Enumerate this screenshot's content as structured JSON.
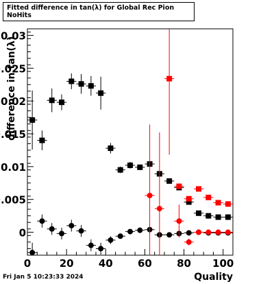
{
  "title": "Fitted difference in tan(λ) for Global Rec Pion NoHits",
  "timestamp": "Fri Jan  5 10:23:33 2024",
  "chart_data": {
    "type": "scatter",
    "title": "Fitted difference in tan(λ) for Global Rec Pion NoHits",
    "xlabel": "Quality",
    "ylabel": "difference in tan(λ)",
    "xlim": [
      0,
      105
    ],
    "ylim": [
      -0.0035,
      0.031
    ],
    "x_ticks": [
      0,
      20,
      40,
      60,
      80,
      100
    ],
    "y_ticks": [
      {
        "value": 0,
        "label": "0"
      },
      {
        "value": 0.005,
        "label": "0.005"
      },
      {
        "value": 0.01,
        "label": "0.01"
      },
      {
        "value": 0.015,
        "label": "0.015"
      },
      {
        "value": 0.02,
        "label": "0.02"
      },
      {
        "value": 0.025,
        "label": "0.025"
      },
      {
        "value": 0.03,
        "label": "0.03"
      }
    ],
    "grid": false,
    "series": [
      {
        "marker": "square",
        "color": "#000000",
        "points": [
          {
            "x": 2.5,
            "y": 0.0171,
            "err": 0.0045
          },
          {
            "x": 7.5,
            "y": 0.014,
            "err": 0.0015
          },
          {
            "x": 12.5,
            "y": 0.0201,
            "err": 0.0018
          },
          {
            "x": 17.5,
            "y": 0.0198,
            "err": 0.0012
          },
          {
            "x": 22.5,
            "y": 0.023,
            "err": 0.0012
          },
          {
            "x": 27.5,
            "y": 0.0226,
            "err": 0.0015
          },
          {
            "x": 32.5,
            "y": 0.0223,
            "err": 0.0015
          },
          {
            "x": 37.5,
            "y": 0.0212,
            "err": 0.0025
          },
          {
            "x": 42.5,
            "y": 0.0128,
            "err": 0.0008
          },
          {
            "x": 47.5,
            "y": 0.0095,
            "err": 0.0005
          },
          {
            "x": 52.5,
            "y": 0.0102,
            "err": 0.0005
          },
          {
            "x": 57.5,
            "y": 0.0099,
            "err": 0.0004
          },
          {
            "x": 62.5,
            "y": 0.0104,
            "err": 0.0005
          },
          {
            "x": 67.5,
            "y": 0.0089,
            "err": 0.0004
          },
          {
            "x": 72.5,
            "y": 0.0078,
            "err": 0.0003
          },
          {
            "x": 77.5,
            "y": 0.0068,
            "err": 0.0003
          },
          {
            "x": 82.5,
            "y": 0.0046,
            "err": 0.0003
          },
          {
            "x": 87.5,
            "y": 0.0029,
            "err": 0.0002
          },
          {
            "x": 92.5,
            "y": 0.0025,
            "err": 0.0002
          },
          {
            "x": 97.5,
            "y": 0.0023,
            "err": 0.0002
          },
          {
            "x": 102.5,
            "y": 0.0023,
            "err": 0.0002
          }
        ]
      },
      {
        "marker": "circle",
        "color": "#000000",
        "points": [
          {
            "x": 2.5,
            "y": -0.0031,
            "err": 0.0015
          },
          {
            "x": 7.5,
            "y": 0.0017,
            "err": 0.001
          },
          {
            "x": 12.5,
            "y": 0.0005,
            "err": 0.0009
          },
          {
            "x": 17.5,
            "y": -0.0002,
            "err": 0.0009
          },
          {
            "x": 22.5,
            "y": 0.001,
            "err": 0.0009
          },
          {
            "x": 27.5,
            "y": 0.0002,
            "err": 0.0009
          },
          {
            "x": 32.5,
            "y": -0.002,
            "err": 0.0009
          },
          {
            "x": 37.5,
            "y": -0.0025,
            "err": 0.0009
          },
          {
            "x": 42.5,
            "y": -0.0012,
            "err": 0.0006
          },
          {
            "x": 47.5,
            "y": -0.0006,
            "err": 0.0004
          },
          {
            "x": 52.5,
            "y": 0.0001,
            "err": 0.0003
          },
          {
            "x": 57.5,
            "y": 0.0003,
            "err": 0.0003
          },
          {
            "x": 62.5,
            "y": 0.0004,
            "err": 0.0003
          },
          {
            "x": 67.5,
            "y": -0.0004,
            "err": 0.0003
          },
          {
            "x": 72.5,
            "y": -0.0004,
            "err": 0.0002
          },
          {
            "x": 77.5,
            "y": -0.0002,
            "err": 0.0002
          },
          {
            "x": 82.5,
            "y": -0.0001,
            "err": 0.0002
          },
          {
            "x": 87.5,
            "y": 0.0,
            "err": 0.0002
          },
          {
            "x": 92.5,
            "y": -0.0001,
            "err": 0.0002
          },
          {
            "x": 97.5,
            "y": -0.0001,
            "err": 0.0002
          },
          {
            "x": 102.5,
            "y": -0.0001,
            "err": 0.0002
          }
        ]
      },
      {
        "marker": "square",
        "color": "#ff0000",
        "points": [
          {
            "x": 72.5,
            "y": 0.0234,
            "err": 0.0116
          },
          {
            "x": 77.5,
            "y": 0.007,
            "err": 0.0004
          },
          {
            "x": 82.5,
            "y": 0.0051,
            "err": 0.0004
          },
          {
            "x": 87.5,
            "y": 0.0066,
            "err": 0.0003
          },
          {
            "x": 92.5,
            "y": 0.0053,
            "err": 0.0003
          },
          {
            "x": 97.5,
            "y": 0.0045,
            "err": 0.0003
          },
          {
            "x": 102.5,
            "y": 0.0043,
            "err": 0.0003
          }
        ]
      },
      {
        "marker": "circle",
        "color": "#ff0000",
        "points": [
          {
            "x": 62.5,
            "y": 0.0056,
            "err": 0.0108
          },
          {
            "x": 67.5,
            "y": 0.0036,
            "err": 0.0116
          },
          {
            "x": 77.5,
            "y": 0.0017,
            "err": 0.0025
          },
          {
            "x": 82.5,
            "y": -0.0015,
            "err": 0.0005
          },
          {
            "x": 87.5,
            "y": 0.0,
            "err": 0.0003
          },
          {
            "x": 92.5,
            "y": 0.0,
            "err": 0.0003
          },
          {
            "x": 97.5,
            "y": 0.0,
            "err": 0.0003
          },
          {
            "x": 102.5,
            "y": 0.0,
            "err": 0.0003
          }
        ]
      }
    ]
  }
}
